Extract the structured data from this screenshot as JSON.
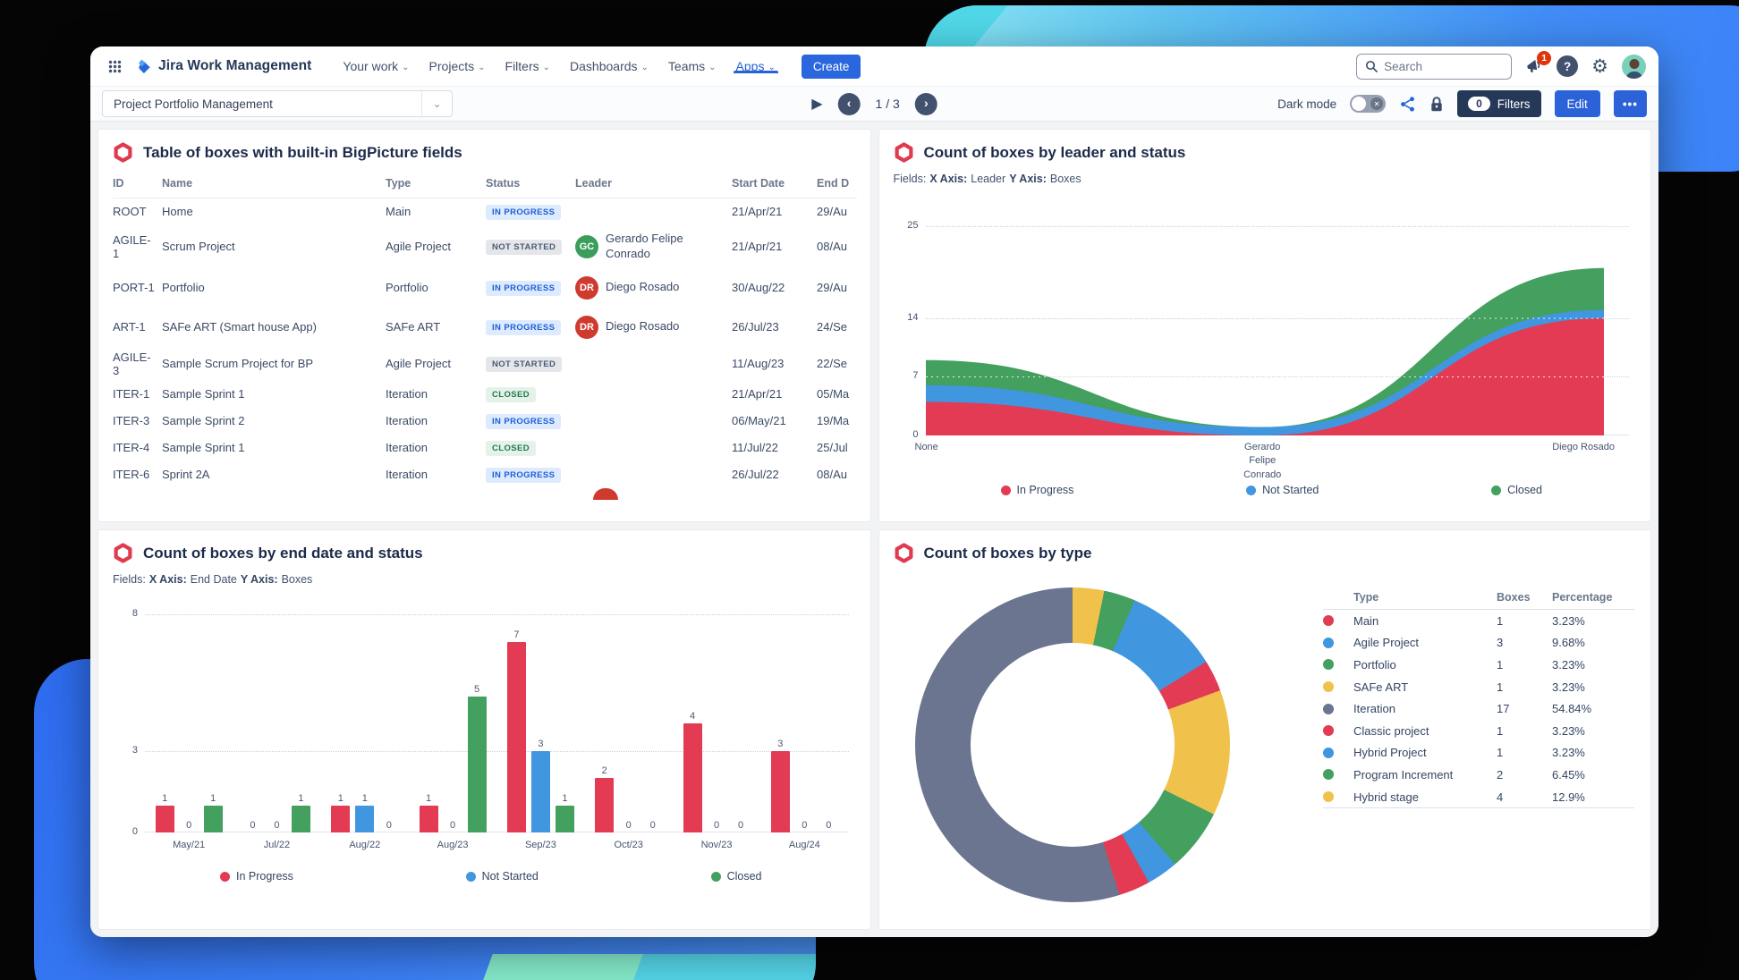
{
  "colors": {
    "brand_blue": "#2563d6",
    "button_blue": "#2c62d8",
    "navy": "#253858",
    "status_red": "#e23b53",
    "status_blue": "#4196e0",
    "status_green": "#44a05f",
    "slice_slate": "#6b7590",
    "slice_yellow": "#f0c24b",
    "notification_red": "#de350b",
    "hexagon_logo_red": "#e03a50"
  },
  "icons": {
    "chevron_down": "⌄",
    "play": "▶",
    "prev": "‹",
    "next": "›",
    "more": "•••",
    "toggle_off": "✕",
    "question": "?",
    "gear": "⚙"
  },
  "navbar": {
    "brand": "Jira Work Management",
    "menu": [
      {
        "label": "Your work",
        "active": false
      },
      {
        "label": "Projects",
        "active": false
      },
      {
        "label": "Filters",
        "active": false
      },
      {
        "label": "Dashboards",
        "active": false
      },
      {
        "label": "Teams",
        "active": false
      },
      {
        "label": "Apps",
        "active": true
      }
    ],
    "create_label": "Create",
    "search_placeholder": "Search",
    "notification_count": "1"
  },
  "toolbar": {
    "dashboard_select": "Project Portfolio Management",
    "page_indicator": "1 / 3",
    "dark_mode_label": "Dark mode",
    "filters_count": "0",
    "filters_label": "Filters",
    "edit_label": "Edit"
  },
  "panels": {
    "table": {
      "title": "Table of boxes with built-in BigPicture fields",
      "columns": [
        "ID",
        "Name",
        "Type",
        "Status",
        "Leader",
        "Start Date",
        "End D"
      ],
      "rows": [
        {
          "id": "ROOT",
          "name": "Home",
          "type": "Main",
          "status": "IN PROGRESS",
          "status_variant": "inprogress",
          "leader": null,
          "start": "21/Apr/21",
          "end": "29/Au"
        },
        {
          "id": "AGILE-1",
          "name": "Scrum Project",
          "type": "Agile Project",
          "status": "NOT STARTED",
          "status_variant": "notstarted",
          "leader": {
            "initials": "GC",
            "name": "Gerardo Felipe Conrado",
            "color": "#3a9e5a"
          },
          "start": "21/Apr/21",
          "end": "08/Au"
        },
        {
          "id": "PORT-1",
          "name": "Portfolio",
          "type": "Portfolio",
          "status": "IN PROGRESS",
          "status_variant": "inprogress",
          "leader": {
            "initials": "DR",
            "name": "Diego Rosado",
            "color": "#cf3a2f"
          },
          "start": "30/Aug/22",
          "end": "29/Au"
        },
        {
          "id": "ART-1",
          "name": "SAFe ART (Smart house App)",
          "type": "SAFe ART",
          "status": "IN PROGRESS",
          "status_variant": "inprogress",
          "leader": {
            "initials": "DR",
            "name": "Diego Rosado",
            "color": "#cf3a2f"
          },
          "start": "26/Jul/23",
          "end": "24/Se"
        },
        {
          "id": "AGILE-3",
          "name": "Sample Scrum Project for BP",
          "type": "Agile Project",
          "status": "NOT STARTED",
          "status_variant": "notstarted",
          "leader": null,
          "start": "11/Aug/23",
          "end": "22/Se"
        },
        {
          "id": "ITER-1",
          "name": "Sample Sprint 1",
          "type": "Iteration",
          "status": "CLOSED",
          "status_variant": "closed",
          "leader": null,
          "start": "21/Apr/21",
          "end": "05/Ma"
        },
        {
          "id": "ITER-3",
          "name": "Sample Sprint 2",
          "type": "Iteration",
          "status": "IN PROGRESS",
          "status_variant": "inprogress",
          "leader": null,
          "start": "06/May/21",
          "end": "19/Ma"
        },
        {
          "id": "ITER-4",
          "name": "Sample Sprint 1",
          "type": "Iteration",
          "status": "CLOSED",
          "status_variant": "closed",
          "leader": null,
          "start": "11/Jul/22",
          "end": "25/Jul"
        },
        {
          "id": "ITER-6",
          "name": "Sprint 2A",
          "type": "Iteration",
          "status": "IN PROGRESS",
          "status_variant": "inprogress",
          "leader": null,
          "start": "26/Jul/22",
          "end": "08/Au"
        }
      ]
    },
    "leader": {
      "title": "Count of boxes by leader and status",
      "fields": {
        "prefix": "Fields:",
        "x_label": "X Axis:",
        "x_value": "Leader",
        "y_label": "Y Axis:",
        "y_value": "Boxes"
      }
    },
    "end_date": {
      "title": "Count of boxes by end date and status",
      "fields": {
        "prefix": "Fields:",
        "x_label": "X Axis:",
        "x_value": "End Date",
        "y_label": "Y Axis:",
        "y_value": "Boxes"
      }
    },
    "type": {
      "title": "Count of boxes by type",
      "legend_columns": [
        "Type",
        "Boxes",
        "Percentage"
      ]
    }
  },
  "chart_data": [
    {
      "id": "boxes_by_leader_status",
      "type": "area",
      "stacked": true,
      "title": "Count of boxes by leader and status",
      "x": [
        "None",
        "Gerardo Felipe Conrado",
        "Diego Rosado"
      ],
      "series": [
        {
          "name": "In Progress",
          "color": "#e23b53",
          "values": [
            4,
            0,
            14
          ]
        },
        {
          "name": "Not Started",
          "color": "#4196e0",
          "values": [
            2,
            1,
            1
          ]
        },
        {
          "name": "Closed",
          "color": "#44a05f",
          "values": [
            3,
            0,
            5
          ]
        }
      ],
      "ylim": [
        0,
        25
      ],
      "yticks": [
        0,
        7,
        14,
        25
      ],
      "grid": "dotted",
      "legend_position": "bottom"
    },
    {
      "id": "boxes_by_end_date_status",
      "type": "bar",
      "title": "Count of boxes by end date and status",
      "categories": [
        "May/21",
        "Jul/22",
        "Aug/22",
        "Aug/23",
        "Sep/23",
        "Oct/23",
        "Nov/23",
        "Aug/24"
      ],
      "series": [
        {
          "name": "In Progress",
          "color": "#e23b53",
          "values": [
            1,
            0,
            1,
            1,
            7,
            2,
            4,
            3
          ]
        },
        {
          "name": "Not Started",
          "color": "#4196e0",
          "values": [
            0,
            0,
            1,
            0,
            3,
            0,
            0,
            0
          ]
        },
        {
          "name": "Closed",
          "color": "#44a05f",
          "values": [
            1,
            1,
            0,
            5,
            1,
            0,
            0,
            0
          ]
        }
      ],
      "ylim": [
        0,
        8
      ],
      "yticks": [
        0,
        3,
        8
      ],
      "grid": "dotted",
      "show_value_labels": true,
      "legend_position": "bottom"
    },
    {
      "id": "boxes_by_type",
      "type": "pie",
      "donut": true,
      "title": "Count of boxes by type",
      "segments": [
        {
          "label": "Main",
          "boxes": "1",
          "pct": 3.23,
          "pct_label": "3.23%",
          "color": "#e23b53"
        },
        {
          "label": "Agile Project",
          "boxes": "3",
          "pct": 9.68,
          "pct_label": "9.68%",
          "color": "#4196e0"
        },
        {
          "label": "Portfolio",
          "boxes": "1",
          "pct": 3.23,
          "pct_label": "3.23%",
          "color": "#44a05f"
        },
        {
          "label": "SAFe ART",
          "boxes": "1",
          "pct": 3.23,
          "pct_label": "3.23%",
          "color": "#f0c24b"
        },
        {
          "label": "Iteration",
          "boxes": "17",
          "pct": 54.84,
          "pct_label": "54.84%",
          "color": "#6b7590"
        },
        {
          "label": "Classic project",
          "boxes": "1",
          "pct": 3.23,
          "pct_label": "3.23%",
          "color": "#e23b53"
        },
        {
          "label": "Hybrid Project",
          "boxes": "1",
          "pct": 3.23,
          "pct_label": "3.23%",
          "color": "#4196e0"
        },
        {
          "label": "Program Increment",
          "boxes": "2",
          "pct": 6.45,
          "pct_label": "6.45%",
          "color": "#44a05f"
        },
        {
          "label": "Hybrid stage",
          "boxes": "4",
          "pct": 12.9,
          "pct_label": "12.9%",
          "color": "#f0c24b"
        }
      ],
      "slice_order": [
        3,
        2,
        1,
        0,
        8,
        7,
        6,
        5,
        4
      ],
      "start_angle_deg": 0,
      "clockwise": true,
      "legend_position": "right"
    }
  ]
}
